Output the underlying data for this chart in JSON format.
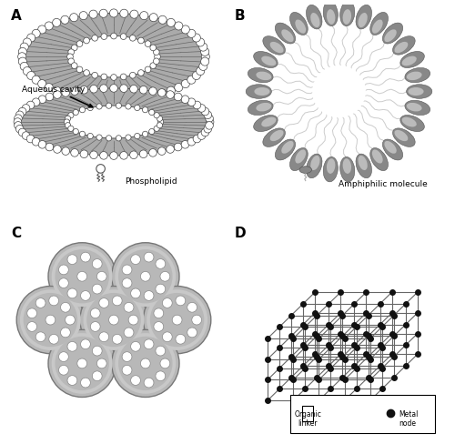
{
  "bg_color": "#ffffff",
  "phospholipid_label": "Phospholipid",
  "aqueous_cavity_label": "Aqueous cavity",
  "amphiphilic_label": "Amphiphilic molecule",
  "mof_legend_linker": "Organic\nlinker",
  "mof_legend_node": "Metal\nnode",
  "node_color": "#111111",
  "line_color": "#555555",
  "gray_medium": "#aaaaaa",
  "gray_dark": "#777777",
  "gray_light": "#cccccc"
}
